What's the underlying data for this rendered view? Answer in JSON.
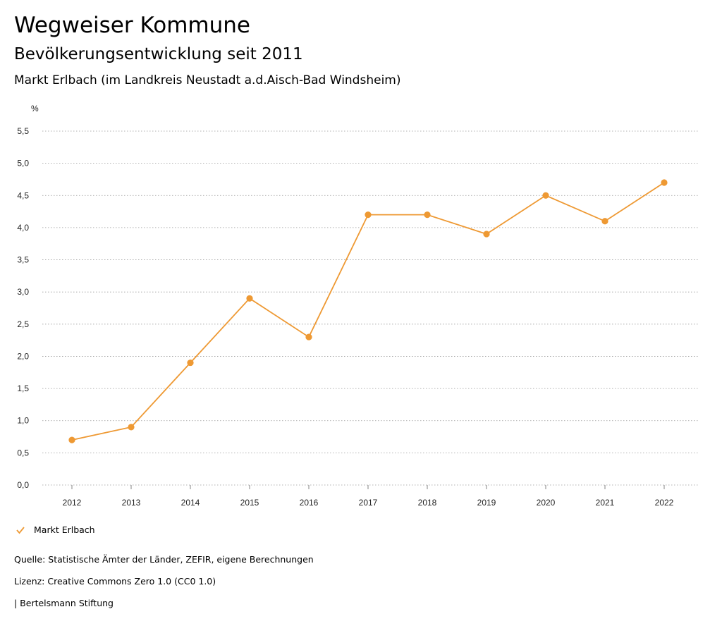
{
  "header": {
    "title": "Wegweiser Kommune",
    "subtitle": "Bevölkerungsentwicklung seit 2011",
    "place": "Markt Erlbach (im Landkreis Neustadt a.d.Aisch-Bad Windsheim)"
  },
  "chart_data": {
    "type": "line",
    "yunit": "%",
    "x": [
      "2012",
      "2013",
      "2014",
      "2015",
      "2016",
      "2017",
      "2018",
      "2019",
      "2020",
      "2021",
      "2022"
    ],
    "series": [
      {
        "name": "Markt Erlbach",
        "color": "#EE9933",
        "values": [
          0.7,
          0.9,
          1.9,
          2.9,
          2.3,
          4.2,
          4.2,
          3.9,
          4.5,
          4.1,
          4.7
        ]
      }
    ],
    "ylim": [
      0,
      5.5
    ],
    "yticks": [
      "0,0",
      "0,5",
      "1,0",
      "1,5",
      "2,0",
      "2,5",
      "3,0",
      "3,5",
      "4,0",
      "4,5",
      "5,0",
      "5,5"
    ],
    "grid": true,
    "legend": "bottom-left"
  },
  "legend": {
    "label": "Markt Erlbach"
  },
  "footer": {
    "source": "Quelle: Statistische Ämter der Länder, ZEFIR, eigene Berechnungen",
    "license": "Lizenz: Creative Commons Zero 1.0 (CC0 1.0)",
    "publisher": "| Bertelsmann Stiftung"
  }
}
